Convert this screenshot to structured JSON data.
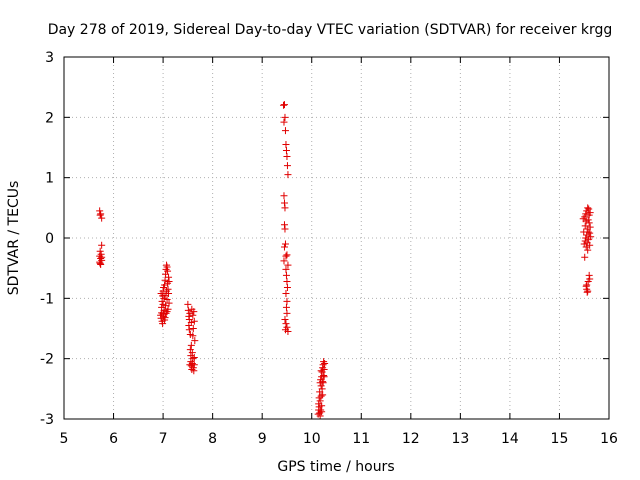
{
  "chart_data": {
    "type": "scatter",
    "title": "Day 278 of 2019, Sidereal Day-to-day VTEC variation (SDTVAR) for receiver krgg",
    "xlabel": "GPS time / hours",
    "ylabel": "SDTVAR / TECUs",
    "xlim": [
      5,
      16
    ],
    "ylim": [
      -3,
      3
    ],
    "xticks": [
      "5",
      "6",
      "7",
      "8",
      "9",
      "10",
      "11",
      "12",
      "13",
      "14",
      "15",
      "16"
    ],
    "yticks": [
      "-3",
      "-2",
      "-1",
      "0",
      "1",
      "2",
      "3"
    ],
    "grid": true,
    "marker": "+",
    "color": "#e00000",
    "series": [
      {
        "name": "SDTVAR",
        "points": [
          [
            5.72,
            0.45
          ],
          [
            5.74,
            0.4
          ],
          [
            5.76,
            0.33
          ],
          [
            5.73,
            0.38
          ],
          [
            5.76,
            -0.12
          ],
          [
            5.73,
            -0.22
          ],
          [
            5.75,
            -0.27
          ],
          [
            5.72,
            -0.3
          ],
          [
            5.74,
            -0.34
          ],
          [
            5.76,
            -0.37
          ],
          [
            5.72,
            -0.4
          ],
          [
            5.74,
            -0.44
          ],
          [
            5.76,
            -0.32
          ],
          [
            5.73,
            -0.42
          ],
          [
            6.95,
            -1.28
          ],
          [
            6.96,
            -1.33
          ],
          [
            6.97,
            -1.24
          ],
          [
            6.97,
            -1.15
          ],
          [
            6.98,
            -1.38
          ],
          [
            6.98,
            -1.05
          ],
          [
            6.99,
            -0.96
          ],
          [
            6.99,
            -1.42
          ],
          [
            7.0,
            -1.1
          ],
          [
            7.0,
            -0.88
          ],
          [
            7.01,
            -1.3
          ],
          [
            7.01,
            -0.82
          ],
          [
            7.02,
            -1.2
          ],
          [
            7.02,
            -1.0
          ],
          [
            7.03,
            -0.78
          ],
          [
            7.03,
            -1.36
          ],
          [
            7.04,
            -0.95
          ],
          [
            7.04,
            -0.7
          ],
          [
            7.05,
            -1.12
          ],
          [
            7.05,
            -0.6
          ],
          [
            7.06,
            -1.25
          ],
          [
            7.06,
            -0.52
          ],
          [
            7.07,
            -0.88
          ],
          [
            7.07,
            -0.45
          ],
          [
            7.08,
            -1.02
          ],
          [
            7.08,
            -0.48
          ],
          [
            7.09,
            -0.75
          ],
          [
            7.09,
            -0.55
          ],
          [
            7.1,
            -1.18
          ],
          [
            7.1,
            -0.85
          ],
          [
            7.11,
            -0.92
          ],
          [
            7.11,
            -0.65
          ],
          [
            7.12,
            -1.08
          ],
          [
            7.12,
            -0.72
          ],
          [
            6.96,
            -0.92
          ],
          [
            7.0,
            -1.26
          ],
          [
            7.04,
            -1.32
          ],
          [
            7.08,
            -1.22
          ],
          [
            7.5,
            -1.1
          ],
          [
            7.51,
            -1.2
          ],
          [
            7.52,
            -1.3
          ],
          [
            7.52,
            -1.45
          ],
          [
            7.53,
            -1.52
          ],
          [
            7.53,
            -1.35
          ],
          [
            7.54,
            -1.25
          ],
          [
            7.55,
            -1.6
          ],
          [
            7.55,
            -1.85
          ],
          [
            7.56,
            -1.95
          ],
          [
            7.56,
            -2.05
          ],
          [
            7.57,
            -2.12
          ],
          [
            7.57,
            -1.4
          ],
          [
            7.58,
            -1.18
          ],
          [
            7.58,
            -2.18
          ],
          [
            7.59,
            -2.08
          ],
          [
            7.59,
            -1.9
          ],
          [
            7.6,
            -1.28
          ],
          [
            7.6,
            -2.0
          ],
          [
            7.61,
            -1.5
          ],
          [
            7.61,
            -2.15
          ],
          [
            7.62,
            -1.22
          ],
          [
            7.62,
            -2.2
          ],
          [
            7.63,
            -1.38
          ],
          [
            7.63,
            -1.98
          ],
          [
            7.64,
            -1.7
          ],
          [
            7.54,
            -2.1
          ],
          [
            7.57,
            -1.78
          ],
          [
            7.6,
            -1.62
          ],
          [
            7.63,
            -2.1
          ],
          [
            9.43,
            2.2
          ],
          [
            9.45,
            2.21
          ],
          [
            9.46,
            2.0
          ],
          [
            9.44,
            1.92
          ],
          [
            9.47,
            1.78
          ],
          [
            9.48,
            1.55
          ],
          [
            9.49,
            1.45
          ],
          [
            9.5,
            1.35
          ],
          [
            9.51,
            1.2
          ],
          [
            9.52,
            1.05
          ],
          [
            9.44,
            0.7
          ],
          [
            9.45,
            0.58
          ],
          [
            9.46,
            0.5
          ],
          [
            9.45,
            0.22
          ],
          [
            9.46,
            0.15
          ],
          [
            9.47,
            -0.1
          ],
          [
            9.45,
            -0.15
          ],
          [
            9.48,
            -0.3
          ],
          [
            9.5,
            -0.28
          ],
          [
            9.44,
            -0.38
          ],
          [
            9.52,
            -0.45
          ],
          [
            9.48,
            -0.52
          ],
          [
            9.49,
            -0.62
          ],
          [
            9.5,
            -0.72
          ],
          [
            9.51,
            -0.82
          ],
          [
            9.48,
            -0.92
          ],
          [
            9.5,
            -1.05
          ],
          [
            9.49,
            -1.15
          ],
          [
            9.5,
            -1.25
          ],
          [
            9.46,
            -1.35
          ],
          [
            9.48,
            -1.42
          ],
          [
            9.5,
            -1.48
          ],
          [
            9.52,
            -1.55
          ],
          [
            9.47,
            -1.52
          ],
          [
            10.13,
            -2.92
          ],
          [
            10.14,
            -2.85
          ],
          [
            10.14,
            -2.75
          ],
          [
            10.15,
            -2.65
          ],
          [
            10.15,
            -2.8
          ],
          [
            10.16,
            -2.55
          ],
          [
            10.16,
            -2.9
          ],
          [
            10.17,
            -2.4
          ],
          [
            10.17,
            -2.7
          ],
          [
            10.18,
            -2.35
          ],
          [
            10.18,
            -2.85
          ],
          [
            10.19,
            -2.62
          ],
          [
            10.19,
            -2.45
          ],
          [
            10.2,
            -2.78
          ],
          [
            10.2,
            -2.3
          ],
          [
            10.21,
            -2.5
          ],
          [
            10.21,
            -2.22
          ],
          [
            10.22,
            -2.6
          ],
          [
            10.22,
            -2.15
          ],
          [
            10.23,
            -2.4
          ],
          [
            10.23,
            -2.1
          ],
          [
            10.24,
            -2.28
          ],
          [
            10.24,
            -2.05
          ],
          [
            10.25,
            -2.18
          ],
          [
            10.26,
            -2.08
          ],
          [
            10.17,
            -2.95
          ],
          [
            10.2,
            -2.88
          ],
          [
            10.22,
            -2.38
          ],
          [
            10.25,
            -2.3
          ],
          [
            10.19,
            -2.2
          ],
          [
            15.48,
            0.32
          ],
          [
            15.49,
            0.1
          ],
          [
            15.5,
            -0.1
          ],
          [
            15.51,
            0.35
          ],
          [
            15.51,
            -0.32
          ],
          [
            15.52,
            0.2
          ],
          [
            15.52,
            -0.05
          ],
          [
            15.53,
            0.4
          ],
          [
            15.53,
            0.0
          ],
          [
            15.54,
            -0.15
          ],
          [
            15.54,
            0.28
          ],
          [
            15.55,
            0.05
          ],
          [
            15.55,
            0.45
          ],
          [
            15.56,
            -0.08
          ],
          [
            15.56,
            0.15
          ],
          [
            15.57,
            0.5
          ],
          [
            15.57,
            -0.2
          ],
          [
            15.58,
            0.3
          ],
          [
            15.58,
            0.1
          ],
          [
            15.59,
            0.48
          ],
          [
            15.59,
            -0.02
          ],
          [
            15.6,
            0.25
          ],
          [
            15.6,
            0.38
          ],
          [
            15.61,
            0.08
          ],
          [
            15.61,
            -0.12
          ],
          [
            15.62,
            0.18
          ],
          [
            15.62,
            0.42
          ],
          [
            15.63,
            0.02
          ],
          [
            15.54,
            -0.8
          ],
          [
            15.55,
            -0.85
          ],
          [
            15.56,
            -0.9
          ],
          [
            15.55,
            -0.78
          ],
          [
            15.6,
            -0.62
          ],
          [
            15.61,
            -0.68
          ],
          [
            15.58,
            -0.72
          ],
          [
            15.57,
            -0.88
          ]
        ]
      }
    ]
  }
}
